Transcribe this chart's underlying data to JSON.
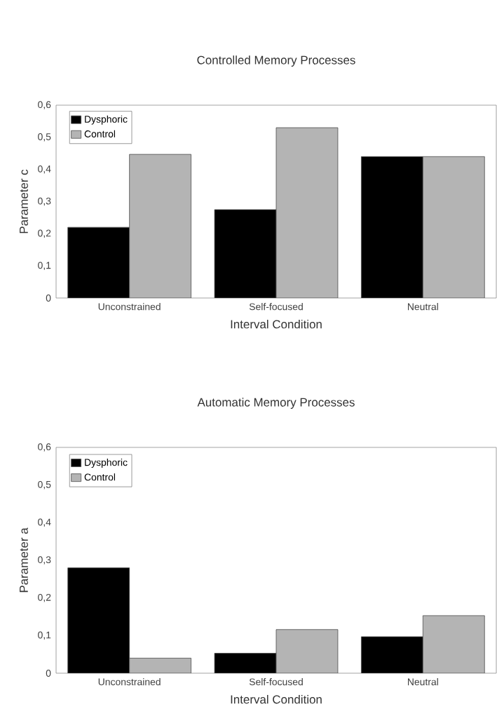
{
  "chart_data": [
    {
      "type": "bar",
      "title": "Controlled Memory Processes",
      "xlabel": "Interval Condition",
      "ylabel": "Parameter c",
      "categories": [
        "Unconstrained",
        "Self-focused",
        "Neutral"
      ],
      "series": [
        {
          "name": "Dysphoric",
          "color": "#000000",
          "values": [
            0.22,
            0.275,
            0.44
          ]
        },
        {
          "name": "Control",
          "color": "#b4b4b4",
          "values": [
            0.447,
            0.53,
            0.44
          ]
        }
      ],
      "ylim": [
        0,
        0.6
      ],
      "yticks": [
        0,
        {
          "value": 0.1,
          "label": "0,1"
        },
        {
          "value": 0.2,
          "label": "0,2"
        },
        {
          "value": 0.3,
          "label": "0,3"
        },
        {
          "value": 0.4,
          "label": "0,4"
        },
        {
          "value": 0.5,
          "label": "0,5"
        },
        {
          "value": 0.6,
          "label": "0,6"
        }
      ],
      "legend": "top left",
      "grid": false
    },
    {
      "type": "bar",
      "title": "Automatic Memory Processes",
      "xlabel": "Interval Condition",
      "ylabel": "Parameter a",
      "categories": [
        "Unconstrained",
        "Self-focused",
        "Neutral"
      ],
      "series": [
        {
          "name": "Dysphoric",
          "color": "#000000",
          "values": [
            0.28,
            0.053,
            0.097
          ]
        },
        {
          "name": "Control",
          "color": "#b4b4b4",
          "values": [
            0.04,
            0.116,
            0.153
          ]
        }
      ],
      "ylim": [
        0,
        0.6
      ],
      "yticks": [
        0,
        {
          "value": 0.1,
          "label": "0,1"
        },
        {
          "value": 0.2,
          "label": "0,2"
        },
        {
          "value": 0.3,
          "label": "0,3"
        },
        {
          "value": 0.4,
          "label": "0,4"
        },
        {
          "value": 0.5,
          "label": "0,5"
        },
        {
          "value": 0.6,
          "label": "0,6"
        }
      ],
      "legend": "top left",
      "grid": false
    }
  ]
}
